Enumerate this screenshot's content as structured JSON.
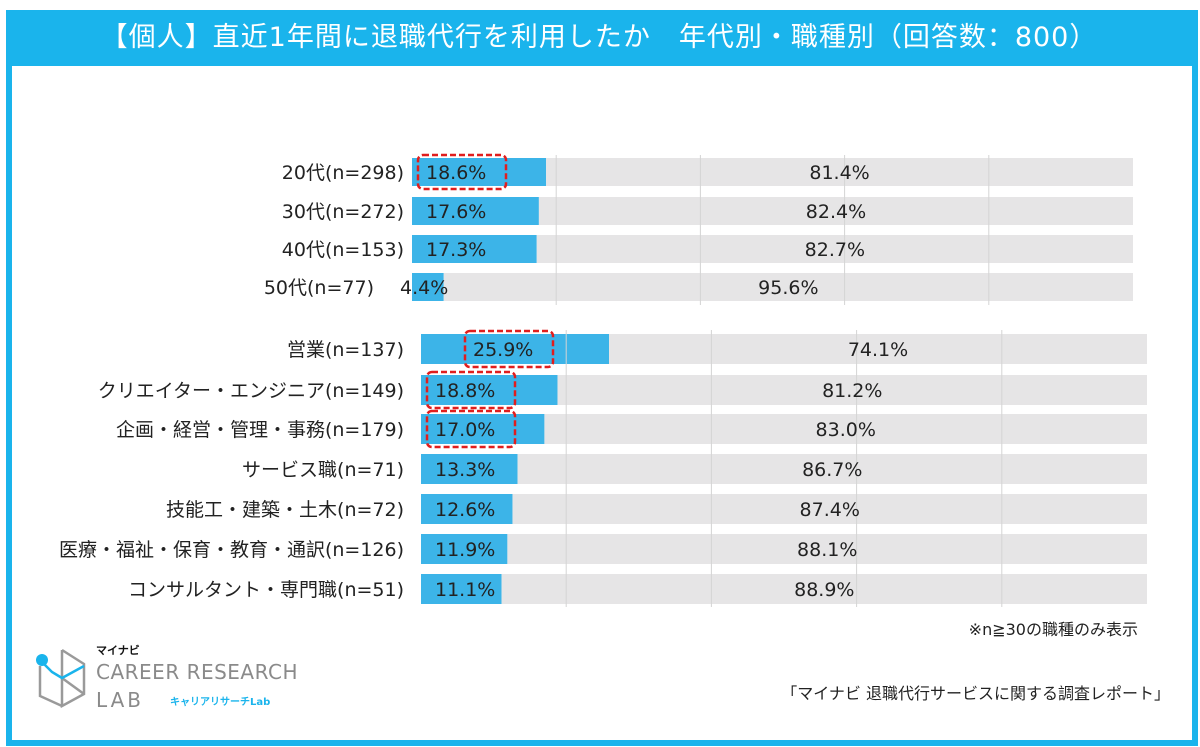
{
  "title": "【個人】直近1年間に退職代行を利用したか　年代別・職種別（回答数：800）",
  "colors": {
    "frame": "#1ab4ec",
    "used": "#3cb4e8",
    "not_used": "#e6e5e6",
    "highlight": "#e01e1e"
  },
  "chart_data": [
    {
      "type": "bar",
      "orientation": "horizontal-stacked-100",
      "categories": [
        "20代(n=298)",
        "30代(n=272)",
        "40代(n=153)",
        "50代(n=77)"
      ],
      "series": [
        {
          "values": [
            18.6,
            17.6,
            17.3,
            4.4
          ]
        },
        {
          "values": [
            81.4,
            82.4,
            82.7,
            95.6
          ]
        }
      ],
      "data_labels": [
        [
          "18.6%",
          "17.6%",
          "17.3%",
          "4.4%"
        ],
        [
          "81.4%",
          "82.4%",
          "82.7%",
          "95.6%"
        ]
      ],
      "highlighted": [
        true,
        false,
        false,
        false
      ],
      "xlim": [
        0,
        100
      ],
      "grid": true
    },
    {
      "type": "bar",
      "orientation": "horizontal-stacked-100",
      "categories": [
        "営業(n=137)",
        "クリエイター・エンジニア(n=149)",
        "企画・経営・管理・事務(n=179)",
        "サービス職(n=71)",
        "技能工・建築・土木(n=72)",
        "医療・福祉・保育・教育・通訳(n=126)",
        "コンサルタント・専門職(n=51)"
      ],
      "series": [
        {
          "values": [
            25.9,
            18.8,
            17.0,
            13.3,
            12.6,
            11.9,
            11.1
          ]
        },
        {
          "values": [
            74.1,
            81.2,
            83.0,
            86.7,
            87.4,
            88.1,
            88.9
          ]
        }
      ],
      "data_labels": [
        [
          "25.9%",
          "18.8%",
          "17.0%",
          "13.3%",
          "12.6%",
          "11.9%",
          "11.1%"
        ],
        [
          "74.1%",
          "81.2%",
          "83.0%",
          "86.7%",
          "87.4%",
          "88.1%",
          "88.9%"
        ]
      ],
      "highlighted": [
        true,
        true,
        true,
        false,
        false,
        false,
        false
      ],
      "xlim": [
        0,
        100
      ],
      "grid": true
    }
  ],
  "note": "※n≧30の職種のみ表示",
  "source": "「マイナビ 退職代行サービスに関する調査レポート」",
  "logo": {
    "small": "マイナビ",
    "line1": "CAREER RESEARCH",
    "line2": "LAB",
    "jp": "キャリアリサーチLab"
  }
}
